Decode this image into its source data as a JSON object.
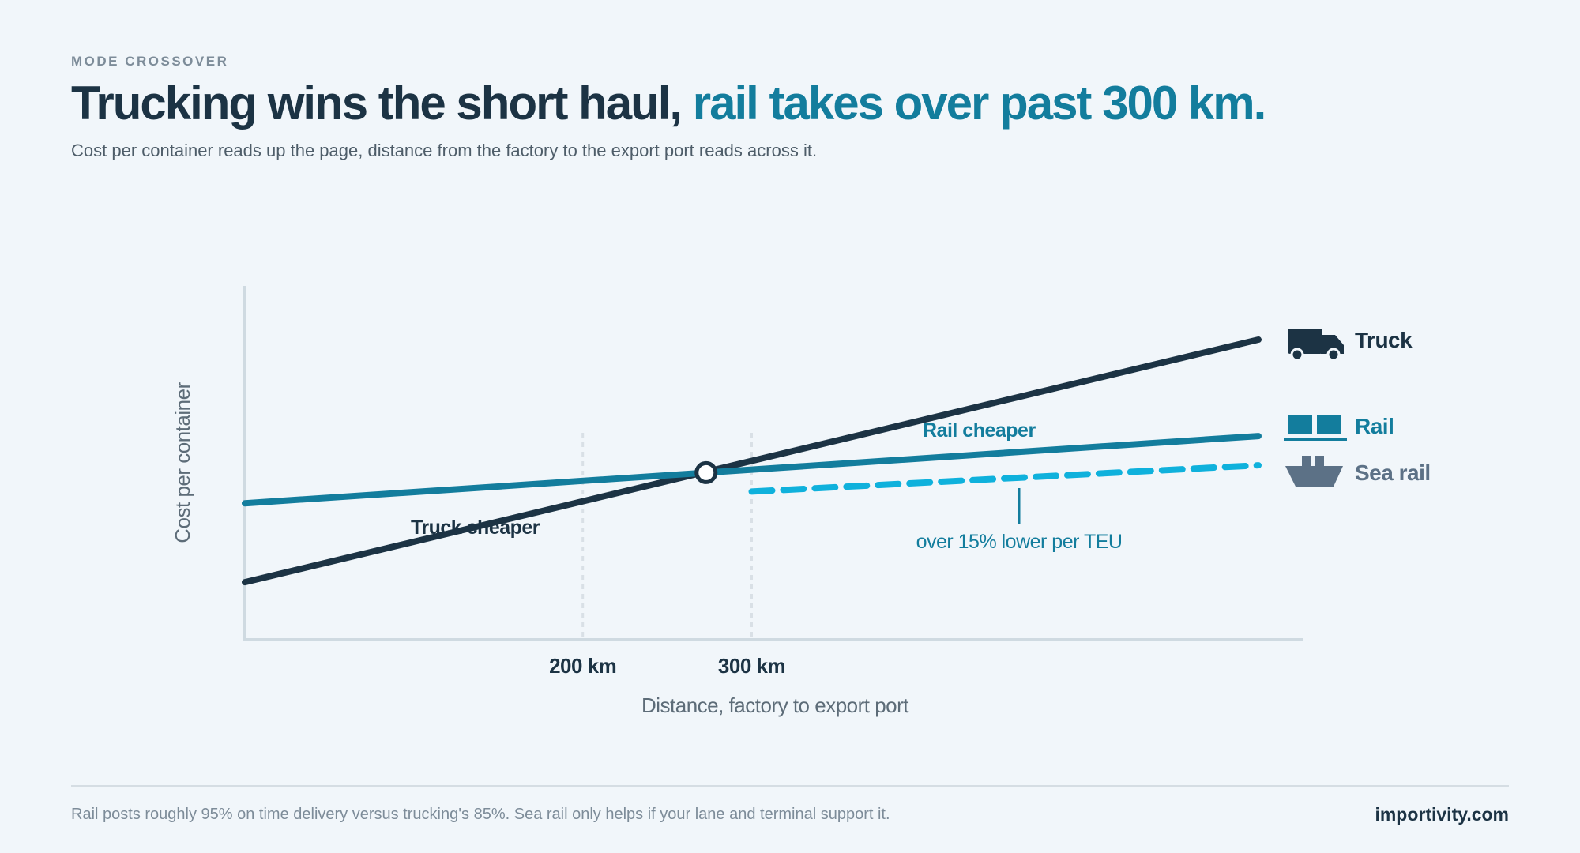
{
  "header": {
    "eyebrow": "MODE CROSSOVER",
    "headline_main": "Trucking wins the short haul, ",
    "headline_accent": "rail takes over past 300 km.",
    "subtitle": "Cost per container reads up the page, distance from the factory to the export port reads across it."
  },
  "chart_data": {
    "type": "line",
    "xlabel": "Distance, factory to export port",
    "ylabel": "Cost per container",
    "x_ticks": [
      {
        "value": 200,
        "label": "200 km"
      },
      {
        "value": 300,
        "label": "300 km"
      }
    ],
    "series": [
      {
        "name": "Truck",
        "color": "#1c3344",
        "points": [
          [
            0,
            0.17
          ],
          [
            600,
            1.0
          ]
        ]
      },
      {
        "name": "Rail",
        "color": "#137d9d",
        "points": [
          [
            0,
            0.44
          ],
          [
            600,
            0.67
          ]
        ]
      },
      {
        "name": "Sea rail",
        "color": "#0fb1dc",
        "style": "dashed",
        "points": [
          [
            300,
            0.48
          ],
          [
            600,
            0.57
          ]
        ]
      }
    ],
    "crossover": {
      "x": 273,
      "y": 0.545
    },
    "legend_icons": {
      "Truck": "truck-icon",
      "Rail": "rail-containers-icon",
      "Sea rail": "ship-icon"
    },
    "region_labels": {
      "truck": "Truck cheaper",
      "rail": "Rail cheaper"
    },
    "annotation": "over 15% lower per TEU",
    "grid": false
  },
  "footer": {
    "note": "Rail posts roughly 95% on time delivery versus trucking's 85%. Sea rail only helps if your lane and terminal support it.",
    "brand": "importivity.com"
  }
}
